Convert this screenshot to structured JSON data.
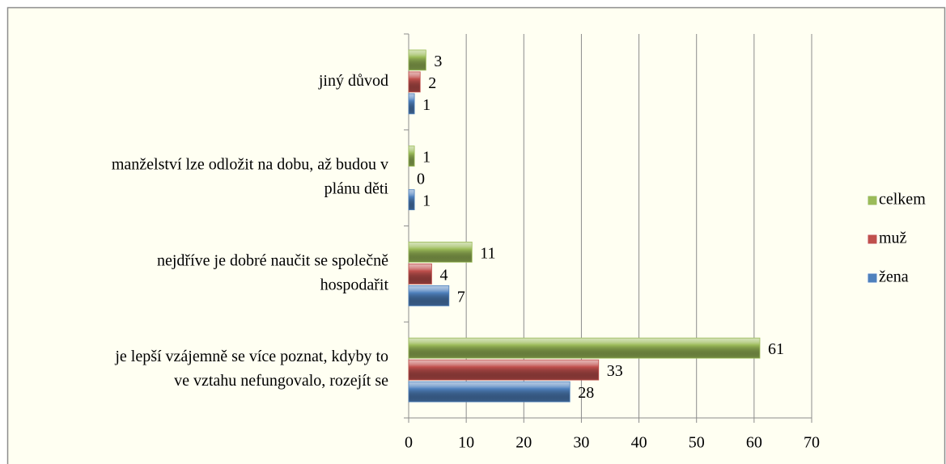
{
  "chart_data": {
    "type": "bar",
    "orientation": "horizontal",
    "categories": [
      [
        "jiný důvod"
      ],
      [
        "manželství lze odložit na dobu, až budou v",
        "plánu děti"
      ],
      [
        "nejdříve je dobré naučit se společně",
        "hospodařit"
      ],
      [
        "je lepší vzájemně se více poznat, kdyby to",
        "ve vztahu nefungovalo, rozejít se"
      ]
    ],
    "series": [
      {
        "name": "žena",
        "color": "#4f81bd",
        "values": [
          1,
          1,
          7,
          28
        ]
      },
      {
        "name": "muž",
        "color": "#c0504d",
        "values": [
          2,
          0,
          4,
          33
        ]
      },
      {
        "name": "celkem",
        "color": "#9bbb59",
        "values": [
          3,
          1,
          11,
          61
        ]
      }
    ],
    "xlim": [
      0,
      70
    ],
    "xticks": [
      0,
      10,
      20,
      30,
      40,
      50,
      60,
      70
    ],
    "grid": true,
    "legend": "right"
  }
}
